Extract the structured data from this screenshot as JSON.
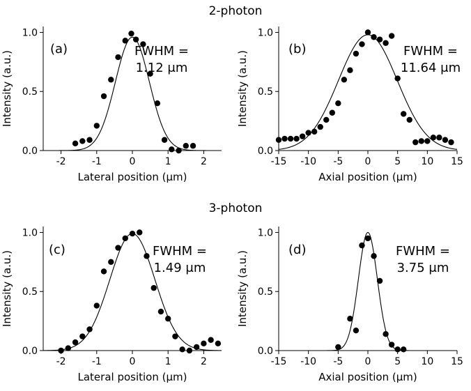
{
  "titles": {
    "top": "2-photon",
    "bottom": "3-photon"
  },
  "chart_data": [
    {
      "id": "a",
      "type": "scatter",
      "panel_label": "(a)",
      "annotation": [
        "FWHM =",
        "1.12 μm"
      ],
      "xlabel": "Lateral position (μm)",
      "ylabel": "Intensity (a.u.)",
      "xlim": [
        -2.5,
        2.5
      ],
      "ylim": [
        0,
        1.05
      ],
      "xticks": [
        -2,
        -1,
        0,
        1,
        2
      ],
      "yticks": [
        0.0,
        0.5,
        1.0
      ],
      "ytick_labels": [
        "0.0",
        "0.5",
        "1.0"
      ],
      "fit": {
        "type": "gaussian",
        "amplitude": 0.96,
        "center": 0.0,
        "fwhm": 1.12
      },
      "points": {
        "x": [
          -1.6,
          -1.4,
          -1.2,
          -1.0,
          -0.8,
          -0.6,
          -0.4,
          -0.2,
          -0.03,
          0.1,
          0.3,
          0.5,
          0.7,
          0.9,
          1.1,
          1.3,
          1.5,
          1.7
        ],
        "y": [
          0.06,
          0.08,
          0.09,
          0.21,
          0.46,
          0.6,
          0.79,
          0.93,
          0.99,
          0.94,
          0.9,
          0.65,
          0.4,
          0.09,
          0.01,
          0.0,
          0.04,
          0.04
        ]
      }
    },
    {
      "id": "b",
      "type": "scatter",
      "panel_label": "(b)",
      "annotation": [
        "FWHM =",
        "11.64 μm"
      ],
      "xlabel": "Axial position (μm)",
      "ylabel": "Intensity (a.u.)",
      "xlim": [
        -15,
        15
      ],
      "ylim": [
        0,
        1.05
      ],
      "xticks": [
        -15,
        -10,
        -5,
        0,
        5,
        10,
        15
      ],
      "yticks": [
        0.0,
        0.5,
        1.0
      ],
      "ytick_labels": [
        "0.0",
        "0.5",
        "1.0"
      ],
      "fit": {
        "type": "gaussian",
        "amplitude": 0.98,
        "center": 0.0,
        "fwhm": 11.64
      },
      "points": {
        "x": [
          -15,
          -14,
          -13,
          -12,
          -11,
          -10,
          -9,
          -8,
          -7,
          -6,
          -5,
          -4,
          -3,
          -2,
          -1,
          0,
          1,
          2,
          3,
          4,
          5,
          6,
          7,
          8,
          9,
          10,
          11,
          12,
          13,
          14
        ],
        "y": [
          0.09,
          0.1,
          0.1,
          0.1,
          0.12,
          0.15,
          0.16,
          0.2,
          0.26,
          0.32,
          0.4,
          0.6,
          0.68,
          0.82,
          0.9,
          1.0,
          0.96,
          0.94,
          0.91,
          0.97,
          0.61,
          0.31,
          0.26,
          0.07,
          0.08,
          0.08,
          0.11,
          0.11,
          0.09,
          0.07
        ]
      }
    },
    {
      "id": "c",
      "type": "scatter",
      "panel_label": "(c)",
      "annotation": [
        "FWHM =",
        "1.49 μm"
      ],
      "xlabel": "Lateral position (μm)",
      "ylabel": "Intensity (a.u.)",
      "xlim": [
        -2.5,
        2.5
      ],
      "ylim": [
        0,
        1.05
      ],
      "xticks": [
        -2,
        -1,
        0,
        1,
        2
      ],
      "yticks": [
        0.0,
        0.5,
        1.0
      ],
      "ytick_labels": [
        "0.0",
        "0.5",
        "1.0"
      ],
      "fit": {
        "type": "gaussian",
        "amplitude": 0.99,
        "center": 0.0,
        "fwhm": 1.49
      },
      "points": {
        "x": [
          -2.0,
          -1.8,
          -1.6,
          -1.4,
          -1.2,
          -1.0,
          -0.8,
          -0.6,
          -0.4,
          -0.2,
          0.0,
          0.2,
          0.4,
          0.6,
          0.8,
          1.0,
          1.2,
          1.4,
          1.6,
          1.8,
          2.0,
          2.2,
          2.4
        ],
        "y": [
          0.0,
          0.02,
          0.07,
          0.12,
          0.18,
          0.38,
          0.67,
          0.75,
          0.87,
          0.95,
          0.99,
          1.0,
          0.8,
          0.53,
          0.33,
          0.27,
          0.12,
          0.01,
          0.0,
          0.03,
          0.06,
          0.09,
          0.06
        ]
      }
    },
    {
      "id": "d",
      "type": "scatter",
      "panel_label": "(d)",
      "annotation": [
        "FWHM =",
        "3.75 μm"
      ],
      "xlabel": "Axial position (μm)",
      "ylabel": "Intensity (a.u.)",
      "xlim": [
        -15,
        15
      ],
      "ylim": [
        0,
        1.05
      ],
      "xticks": [
        -15,
        -10,
        -5,
        0,
        5,
        10,
        15
      ],
      "yticks": [
        0.0,
        0.5,
        1.0
      ],
      "ytick_labels": [
        "0.0",
        "0.5",
        "1.0"
      ],
      "fit": {
        "type": "gaussian",
        "amplitude": 1.0,
        "center": 0.0,
        "fwhm": 3.75
      },
      "points": {
        "x": [
          -5,
          -3,
          -2,
          -1,
          0,
          1,
          2,
          3,
          4,
          5,
          6
        ],
        "y": [
          0.03,
          0.27,
          0.17,
          0.89,
          0.95,
          0.8,
          0.59,
          0.14,
          0.05,
          0.01,
          0.01
        ]
      }
    }
  ]
}
